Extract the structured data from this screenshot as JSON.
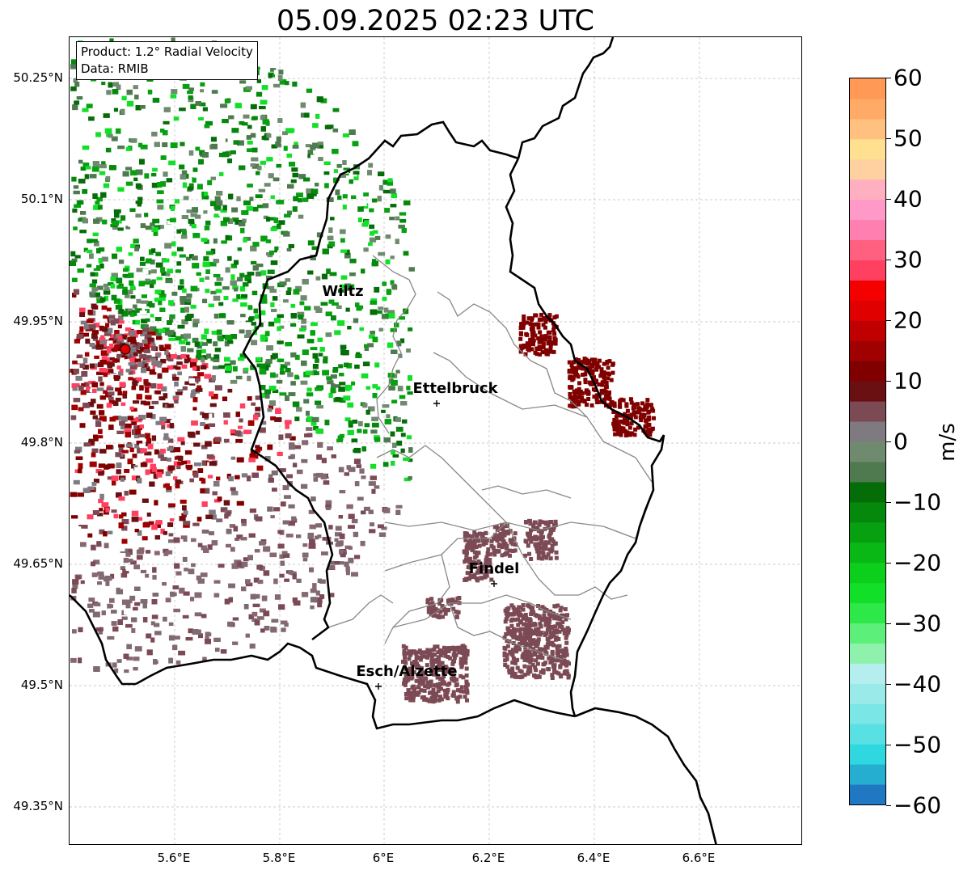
{
  "title": "05.09.2025 02:23 UTC",
  "info": {
    "product": "Product: 1.2° Radial Velocity",
    "source": "Data: RMIB"
  },
  "lat_ticks": [
    "50.25°N",
    "50.1°N",
    "49.95°N",
    "49.8°N",
    "49.65°N",
    "49.5°N",
    "49.35°N"
  ],
  "lon_ticks": [
    "5.6°E",
    "5.8°E",
    "6°E",
    "6.2°E",
    "6.4°E",
    "6.6°E"
  ],
  "colorbar": {
    "label": "m/s",
    "ticks": [
      "60",
      "50",
      "40",
      "30",
      "20",
      "10",
      "0",
      "−10",
      "−20",
      "−30",
      "−40",
      "−50",
      "−60"
    ],
    "min": -60,
    "max": 60,
    "colors": [
      "#1f78c1",
      "#26aed0",
      "#2ed8de",
      "#58e0e2",
      "#7ae6e6",
      "#9aeaea",
      "#b4eeee",
      "#8ff2ac",
      "#5cf07a",
      "#2ee84a",
      "#12e028",
      "#0ccf1c",
      "#09b815",
      "#07a010",
      "#05880c",
      "#046d08",
      "#4f7a4f",
      "#6f8a6f",
      "#7f7a7f",
      "#7c4a55",
      "#6a0f12",
      "#800000",
      "#a00000",
      "#c00000",
      "#e00000",
      "#f40000",
      "#ff4060",
      "#ff6080",
      "#ff80b0",
      "#ff99c8",
      "#ffb0c0",
      "#ffd0a0",
      "#ffe090",
      "#ffc080",
      "#ffaa66",
      "#ff9955"
    ]
  },
  "cities": [
    {
      "name": "Wiltz"
    },
    {
      "name": "Ettelbruck"
    },
    {
      "name": "Findel"
    },
    {
      "name": "Esch/Alzette"
    }
  ],
  "radar_site": {
    "lat": 49.914,
    "lon": 5.505
  }
}
